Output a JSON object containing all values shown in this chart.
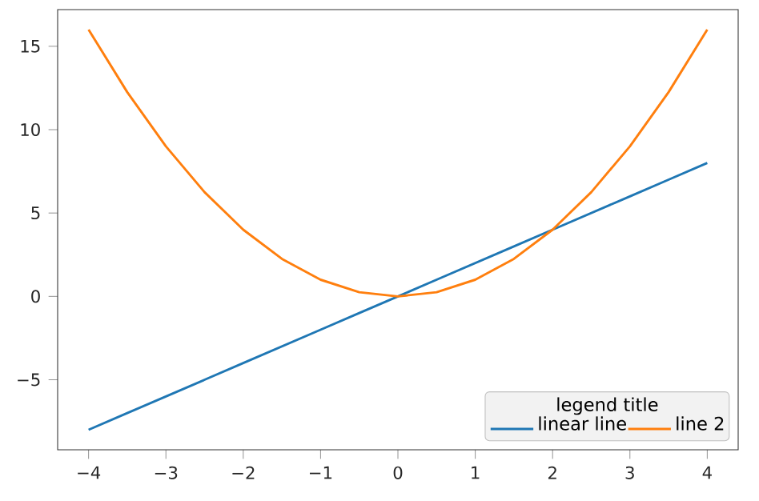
{
  "chart_data": {
    "type": "line",
    "legend_title": "legend title",
    "legend": "bottom right",
    "grid": false,
    "marker": "none",
    "line_style": "solid",
    "x": [
      -4,
      -3.5,
      -3,
      -2.5,
      -2,
      -1.5,
      -1,
      -0.5,
      0,
      0.5,
      1,
      1.5,
      2,
      2.5,
      3,
      3.5,
      4
    ],
    "series": [
      {
        "name": "linear line",
        "color": "#1f77b4",
        "values": [
          -8,
          -7,
          -6,
          -5,
          -4,
          -3,
          -2,
          -1,
          0,
          1,
          2,
          3,
          4,
          5,
          6,
          7,
          8
        ]
      },
      {
        "name": "line 2",
        "color": "#ff7f0e",
        "values": [
          16,
          12.25,
          9,
          6.25,
          4,
          2.25,
          1,
          0.25,
          0,
          0.25,
          1,
          2.25,
          4,
          6.25,
          9,
          12.25,
          16
        ]
      }
    ],
    "xlim": [
      -4.4,
      4.4
    ],
    "ylim": [
      -9.2,
      17.2
    ],
    "xticks": [
      {
        "value": -4,
        "label": "−4"
      },
      {
        "value": -3,
        "label": "−3"
      },
      {
        "value": -2,
        "label": "−2"
      },
      {
        "value": -1,
        "label": "−1"
      },
      0,
      1,
      2,
      3,
      4
    ],
    "yticks": [
      {
        "value": -5,
        "label": "−5"
      },
      0,
      5,
      10,
      15
    ]
  }
}
